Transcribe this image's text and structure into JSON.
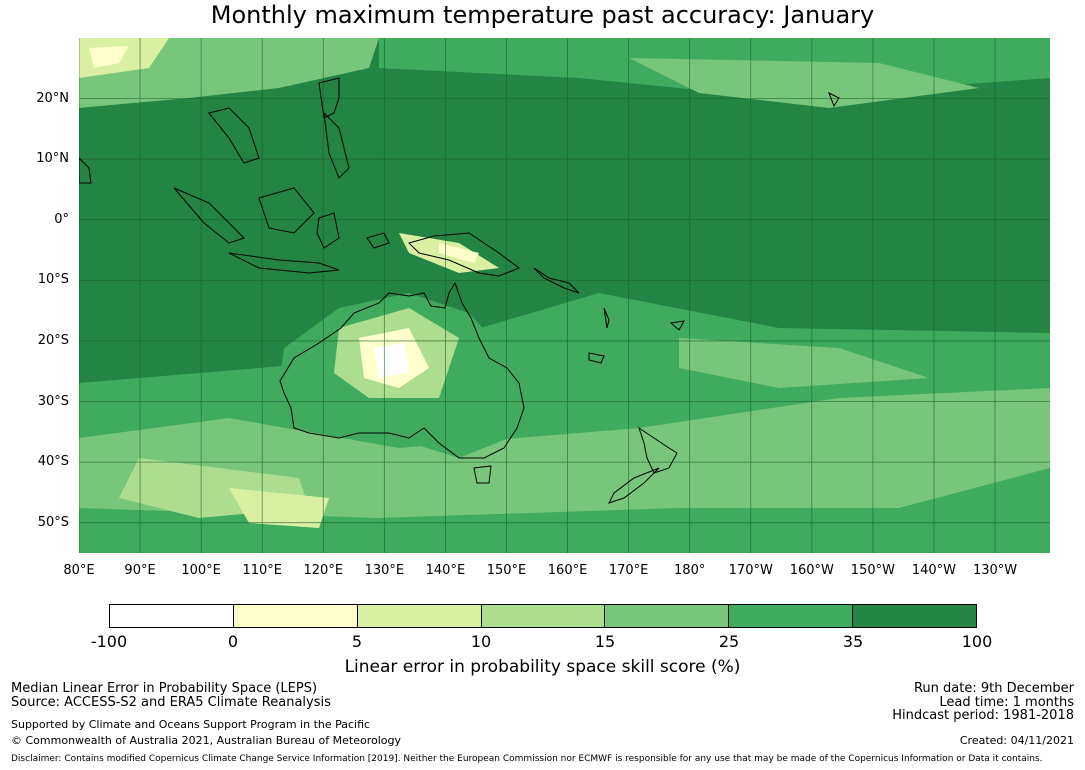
{
  "title": "Monthly maximum temperature past accuracy: January",
  "map": {
    "lat_labels": [
      "20°N",
      "10°N",
      "0°",
      "10°S",
      "20°S",
      "30°S",
      "40°S",
      "50°S"
    ],
    "lon_labels": [
      "80°E",
      "90°E",
      "100°E",
      "110°E",
      "120°E",
      "130°E",
      "140°E",
      "150°E",
      "160°E",
      "170°E",
      "180°",
      "170°W",
      "160°W",
      "150°W",
      "140°W",
      "130°W"
    ],
    "extent": {
      "lon_min": 80,
      "lon_max": 239,
      "lat_min": -55,
      "lat_max": 30
    }
  },
  "colorbar": {
    "ticks": [
      "-100",
      "0",
      "5",
      "10",
      "15",
      "25",
      "35",
      "100"
    ],
    "colors": [
      "#ffffff",
      "#ffffcc",
      "#d9f0a3",
      "#addd8e",
      "#78c679",
      "#41ab5d",
      "#238443"
    ],
    "label": "Linear error in probability space skill score (%)"
  },
  "footer": {
    "line1": "Median Linear Error in Probability Space (LEPS)",
    "line2": "Source: ACCESS-S2 and ERA5 Climate Reanalysis",
    "line3": "Supported by Climate and Oceans Support Program in the Pacific",
    "line4": "© Commonwealth of Australia 2021, Australian Bureau of Meteorology",
    "run_date": "Run date: 9th December",
    "lead_time": "Lead time: 1 months",
    "hindcast": "Hindcast period: 1981-2018",
    "created": "Created: 04/11/2021",
    "disclaimer": "Disclaimer: Contains modified Copernicus Climate Change Service Information [2019]. Neither the European Commission nor ECMWF is responsible for any use that may be made of the Copernicus Information or Data it contains."
  }
}
